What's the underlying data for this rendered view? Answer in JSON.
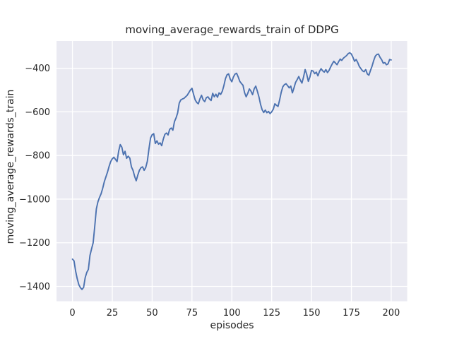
{
  "chart_data": {
    "type": "line",
    "title": "moving_average_rewards_train of DDPG",
    "xlabel": "episodes",
    "ylabel": "moving_average_rewards_train",
    "grid": true,
    "legend": null,
    "xlim": [
      -10,
      210
    ],
    "ylim": [
      -1468,
      -275
    ],
    "xticks": [
      0,
      25,
      50,
      75,
      100,
      125,
      150,
      175,
      200
    ],
    "yticks": [
      -400,
      -600,
      -800,
      -1000,
      -1200,
      -1400
    ],
    "xtick_labels": [
      "0",
      "25",
      "50",
      "75",
      "100",
      "125",
      "150",
      "175",
      "200"
    ],
    "ytick_labels": [
      "−400",
      "−600",
      "−800",
      "−1000",
      "−1200",
      "−1400"
    ],
    "x_start": 0,
    "x_step": 1,
    "series": [
      {
        "name": "moving_average_rewards_train",
        "color": "#4c72b0",
        "values": [
          -1275,
          -1283,
          -1330,
          -1365,
          -1392,
          -1406,
          -1414,
          -1405,
          -1360,
          -1336,
          -1322,
          -1258,
          -1228,
          -1200,
          -1125,
          -1045,
          -1012,
          -992,
          -975,
          -950,
          -920,
          -898,
          -876,
          -850,
          -828,
          -815,
          -808,
          -818,
          -828,
          -780,
          -750,
          -762,
          -797,
          -781,
          -813,
          -803,
          -812,
          -852,
          -868,
          -895,
          -916,
          -890,
          -868,
          -856,
          -852,
          -868,
          -855,
          -826,
          -770,
          -720,
          -705,
          -700,
          -745,
          -733,
          -748,
          -742,
          -755,
          -725,
          -703,
          -697,
          -706,
          -680,
          -674,
          -684,
          -645,
          -628,
          -605,
          -560,
          -545,
          -541,
          -538,
          -531,
          -524,
          -512,
          -500,
          -492,
          -520,
          -545,
          -557,
          -563,
          -540,
          -524,
          -545,
          -553,
          -535,
          -531,
          -541,
          -548,
          -515,
          -531,
          -519,
          -533,
          -513,
          -520,
          -506,
          -480,
          -448,
          -430,
          -426,
          -450,
          -462,
          -440,
          -427,
          -423,
          -440,
          -460,
          -470,
          -478,
          -512,
          -531,
          -515,
          -495,
          -505,
          -521,
          -495,
          -482,
          -505,
          -531,
          -565,
          -590,
          -603,
          -592,
          -604,
          -598,
          -608,
          -600,
          -588,
          -563,
          -570,
          -575,
          -545,
          -510,
          -485,
          -475,
          -471,
          -480,
          -490,
          -482,
          -513,
          -490,
          -465,
          -452,
          -438,
          -455,
          -468,
          -440,
          -406,
          -428,
          -460,
          -440,
          -410,
          -413,
          -425,
          -418,
          -435,
          -415,
          -402,
          -412,
          -418,
          -406,
          -420,
          -410,
          -394,
          -380,
          -368,
          -376,
          -384,
          -370,
          -358,
          -364,
          -354,
          -348,
          -342,
          -333,
          -329,
          -335,
          -350,
          -368,
          -360,
          -374,
          -392,
          -402,
          -412,
          -416,
          -406,
          -426,
          -432,
          -410,
          -390,
          -365,
          -345,
          -337,
          -335,
          -350,
          -361,
          -377,
          -374,
          -384,
          -380,
          -360,
          -362
        ]
      }
    ],
    "colors": {
      "line": "#4c72b0",
      "plot_background": "#eaeaf2",
      "gridline": "#ffffff",
      "text": "#262626",
      "figure_background": "#ffffff"
    }
  }
}
